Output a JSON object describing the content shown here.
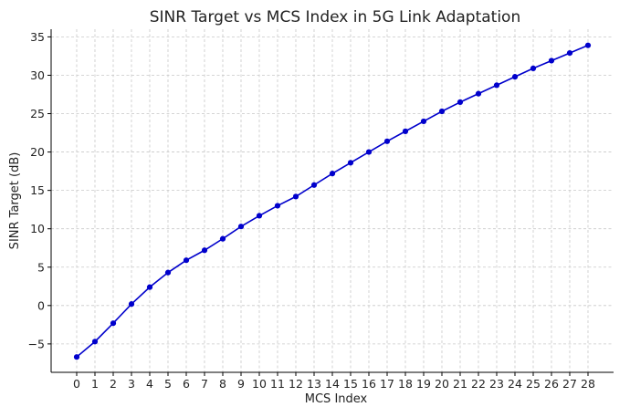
{
  "chart_data": {
    "type": "line",
    "title": "SINR Target vs MCS Index in 5G Link Adaptation",
    "xlabel": "MCS Index",
    "ylabel": "SINR Target (dB)",
    "xlim": [
      -1.4,
      29.4
    ],
    "ylim": [
      -8.7,
      36.0
    ],
    "grid": true,
    "x_ticks": [
      "0",
      "1",
      "2",
      "3",
      "4",
      "5",
      "6",
      "7",
      "8",
      "9",
      "10",
      "11",
      "12",
      "13",
      "14",
      "15",
      "16",
      "17",
      "18",
      "19",
      "20",
      "21",
      "22",
      "23",
      "24",
      "25",
      "26",
      "27",
      "28"
    ],
    "y_ticks": [
      "−5",
      "0",
      "5",
      "10",
      "15",
      "20",
      "25",
      "30",
      "35"
    ],
    "y_tick_values": [
      -5,
      0,
      5,
      10,
      15,
      20,
      25,
      30,
      35
    ],
    "series": [
      {
        "color": "#0000cc",
        "marker": "circle",
        "x": [
          0,
          1,
          2,
          3,
          4,
          5,
          6,
          7,
          8,
          9,
          10,
          11,
          12,
          13,
          14,
          15,
          16,
          17,
          18,
          19,
          20,
          21,
          22,
          23,
          24,
          25,
          26,
          27,
          28
        ],
        "y": [
          -6.7,
          -4.7,
          -2.3,
          0.2,
          2.4,
          4.3,
          5.9,
          7.2,
          8.7,
          10.3,
          11.7,
          13.0,
          14.2,
          15.7,
          17.2,
          18.6,
          20.0,
          21.4,
          22.7,
          24.0,
          25.3,
          26.5,
          27.6,
          28.7,
          29.8,
          30.9,
          31.9,
          32.9,
          33.9
        ]
      }
    ]
  }
}
